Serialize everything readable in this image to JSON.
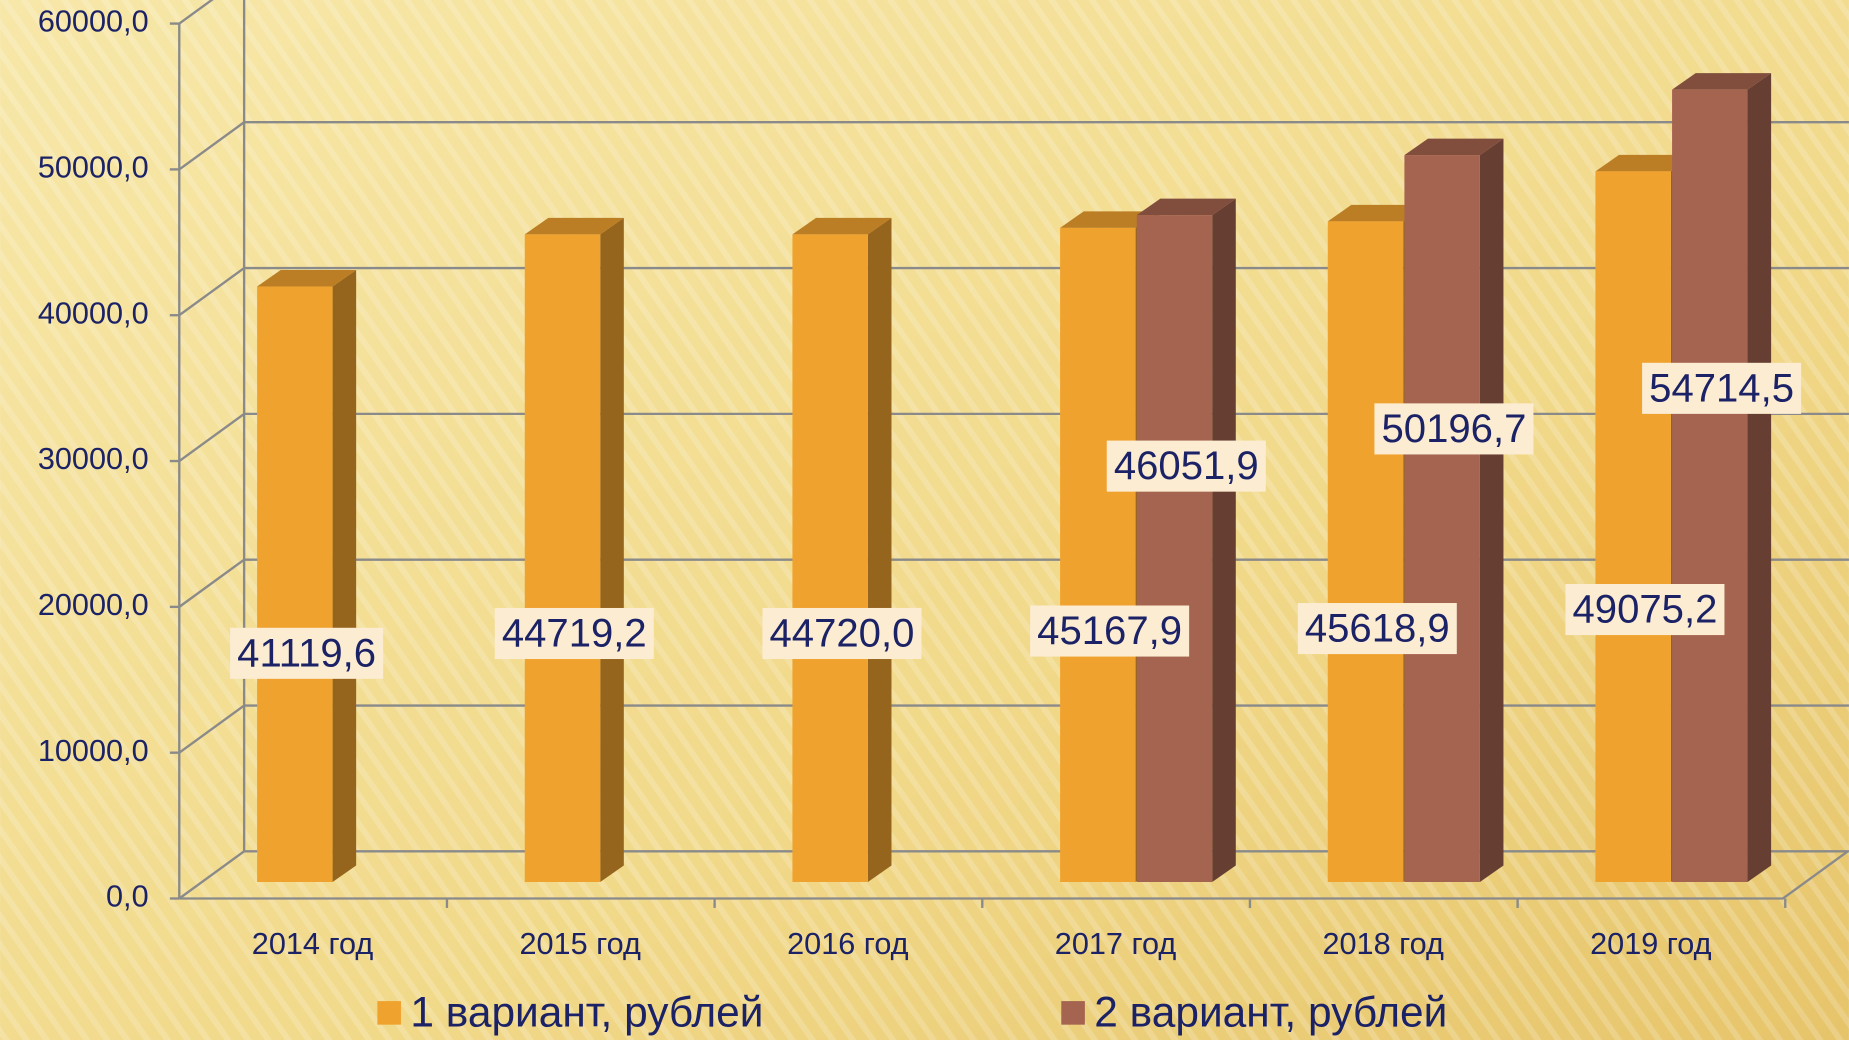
{
  "chart_data": {
    "type": "bar3d",
    "categories": [
      "2014 год",
      "2015 год",
      "2016 год",
      "2017 год",
      "2018 год",
      "2019 год"
    ],
    "series": [
      {
        "name": "1 вариант, рублей",
        "color": "#f0a22e",
        "values": [
          41119.6,
          44719.2,
          44720.0,
          45167.9,
          45618.9,
          49075.2
        ],
        "value_labels": [
          "41119,6",
          "44719,2",
          "44720,0",
          "45167,9",
          "45618,9",
          "49075,2"
        ]
      },
      {
        "name": "2 вариант,  рублей",
        "color": "#a56450",
        "values": [
          null,
          null,
          null,
          46051.9,
          50196.7,
          54714.5
        ],
        "value_labels": [
          null,
          null,
          null,
          "46051,9",
          "50196,7",
          "54714,5"
        ]
      }
    ],
    "ylim": [
      0,
      60000
    ],
    "yticks": [
      {
        "value": 0,
        "label": "0,0"
      },
      {
        "value": 10000,
        "label": "10000,0"
      },
      {
        "value": 20000,
        "label": "20000,0"
      },
      {
        "value": 30000,
        "label": "30000,0"
      },
      {
        "value": 40000,
        "label": "40000,0"
      },
      {
        "value": 50000,
        "label": "50000,0"
      },
      {
        "value": 60000,
        "label": "60000,0"
      }
    ],
    "grid": true
  }
}
